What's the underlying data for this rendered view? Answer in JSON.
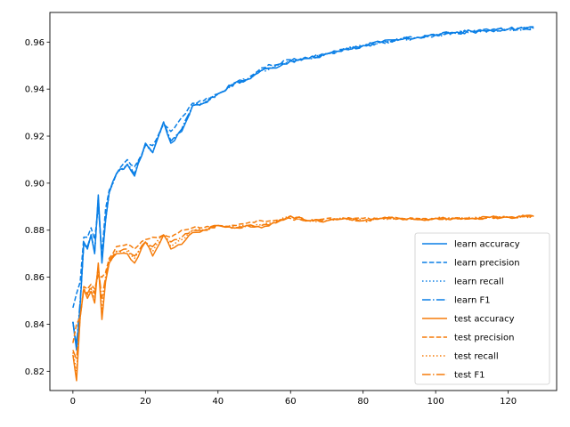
{
  "chart_data": {
    "type": "line",
    "title": "",
    "xlabel": "",
    "ylabel": "",
    "xlim": [
      -6.35,
      133.35
    ],
    "ylim": [
      0.8118,
      0.9726
    ],
    "xticks": [
      0,
      20,
      40,
      60,
      80,
      100,
      120
    ],
    "yticks": [
      0.82,
      0.84,
      0.86,
      0.88,
      0.9,
      0.92,
      0.94,
      0.96
    ],
    "legend_position": "lower-right",
    "grid": false,
    "colors": {
      "learn": "#0a7fe6",
      "test": "#f57c0a"
    },
    "keypoints": {
      "learn accuracy": [
        [
          0,
          0.841
        ],
        [
          1,
          0.829
        ],
        [
          2,
          0.848
        ],
        [
          3,
          0.875
        ],
        [
          4,
          0.872
        ],
        [
          5,
          0.878
        ],
        [
          6,
          0.87
        ],
        [
          7,
          0.895
        ],
        [
          8,
          0.866
        ],
        [
          9,
          0.884
        ],
        [
          10,
          0.896
        ],
        [
          12,
          0.904
        ],
        [
          15,
          0.908
        ],
        [
          17,
          0.903
        ],
        [
          20,
          0.917
        ],
        [
          22,
          0.913
        ],
        [
          25,
          0.926
        ],
        [
          27,
          0.917
        ],
        [
          30,
          0.922
        ],
        [
          33,
          0.933
        ],
        [
          36,
          0.934
        ],
        [
          40,
          0.938
        ],
        [
          45,
          0.943
        ],
        [
          48,
          0.944
        ],
        [
          52,
          0.948
        ],
        [
          55,
          0.949
        ],
        [
          60,
          0.952
        ],
        [
          65,
          0.953
        ],
        [
          70,
          0.955
        ],
        [
          75,
          0.957
        ],
        [
          80,
          0.9585
        ],
        [
          85,
          0.96
        ],
        [
          90,
          0.961
        ],
        [
          95,
          0.962
        ],
        [
          100,
          0.963
        ],
        [
          105,
          0.964
        ],
        [
          110,
          0.9645
        ],
        [
          115,
          0.965
        ],
        [
          120,
          0.9655
        ],
        [
          127,
          0.966
        ]
      ],
      "learn precision": [
        [
          0,
          0.847
        ],
        [
          1,
          0.853
        ],
        [
          2,
          0.858
        ],
        [
          3,
          0.877
        ],
        [
          4,
          0.877
        ],
        [
          5,
          0.881
        ],
        [
          6,
          0.876
        ],
        [
          7,
          0.89
        ],
        [
          8,
          0.87
        ],
        [
          9,
          0.889
        ],
        [
          10,
          0.897
        ],
        [
          12,
          0.904
        ],
        [
          15,
          0.91
        ],
        [
          17,
          0.907
        ],
        [
          20,
          0.916
        ],
        [
          22,
          0.916
        ],
        [
          25,
          0.925
        ],
        [
          27,
          0.922
        ],
        [
          30,
          0.928
        ],
        [
          33,
          0.934
        ],
        [
          36,
          0.935
        ],
        [
          40,
          0.938
        ],
        [
          45,
          0.943
        ],
        [
          48,
          0.944
        ],
        [
          52,
          0.949
        ],
        [
          55,
          0.95
        ],
        [
          60,
          0.9525
        ],
        [
          65,
          0.953
        ],
        [
          70,
          0.955
        ],
        [
          75,
          0.957
        ],
        [
          80,
          0.9585
        ],
        [
          85,
          0.96
        ],
        [
          90,
          0.961
        ],
        [
          95,
          0.962
        ],
        [
          100,
          0.963
        ],
        [
          105,
          0.964
        ],
        [
          110,
          0.9645
        ],
        [
          115,
          0.965
        ],
        [
          120,
          0.9655
        ],
        [
          127,
          0.9665
        ]
      ],
      "learn recall": [
        [
          0,
          0.841
        ],
        [
          1,
          0.83
        ],
        [
          2,
          0.849
        ],
        [
          3,
          0.874
        ],
        [
          4,
          0.872
        ],
        [
          5,
          0.878
        ],
        [
          6,
          0.871
        ],
        [
          7,
          0.894
        ],
        [
          8,
          0.867
        ],
        [
          9,
          0.884
        ],
        [
          10,
          0.896
        ],
        [
          12,
          0.904
        ],
        [
          15,
          0.908
        ],
        [
          17,
          0.904
        ],
        [
          20,
          0.917
        ],
        [
          22,
          0.913
        ],
        [
          25,
          0.926
        ],
        [
          27,
          0.918
        ],
        [
          30,
          0.922
        ],
        [
          33,
          0.933
        ],
        [
          36,
          0.934
        ],
        [
          40,
          0.938
        ],
        [
          45,
          0.943
        ],
        [
          48,
          0.944
        ],
        [
          52,
          0.948
        ],
        [
          55,
          0.949
        ],
        [
          60,
          0.952
        ],
        [
          65,
          0.953
        ],
        [
          70,
          0.955
        ],
        [
          75,
          0.957
        ],
        [
          80,
          0.9585
        ],
        [
          85,
          0.96
        ],
        [
          90,
          0.961
        ],
        [
          95,
          0.962
        ],
        [
          100,
          0.963
        ],
        [
          105,
          0.964
        ],
        [
          110,
          0.9645
        ],
        [
          115,
          0.965
        ],
        [
          120,
          0.9655
        ],
        [
          127,
          0.966
        ]
      ],
      "learn F1": [
        [
          0,
          0.841
        ],
        [
          1,
          0.831
        ],
        [
          2,
          0.85
        ],
        [
          3,
          0.874
        ],
        [
          4,
          0.873
        ],
        [
          5,
          0.878
        ],
        [
          6,
          0.871
        ],
        [
          7,
          0.893
        ],
        [
          8,
          0.867
        ],
        [
          9,
          0.885
        ],
        [
          10,
          0.896
        ],
        [
          12,
          0.904
        ],
        [
          15,
          0.908
        ],
        [
          17,
          0.904
        ],
        [
          20,
          0.917
        ],
        [
          22,
          0.913
        ],
        [
          25,
          0.926
        ],
        [
          27,
          0.918
        ],
        [
          30,
          0.923
        ],
        [
          33,
          0.933
        ],
        [
          36,
          0.934
        ],
        [
          40,
          0.938
        ],
        [
          45,
          0.943
        ],
        [
          48,
          0.944
        ],
        [
          52,
          0.948
        ],
        [
          55,
          0.949
        ],
        [
          60,
          0.952
        ],
        [
          65,
          0.953
        ],
        [
          70,
          0.955
        ],
        [
          75,
          0.957
        ],
        [
          80,
          0.9585
        ],
        [
          85,
          0.96
        ],
        [
          90,
          0.961
        ],
        [
          95,
          0.962
        ],
        [
          100,
          0.963
        ],
        [
          105,
          0.964
        ],
        [
          110,
          0.9645
        ],
        [
          115,
          0.965
        ],
        [
          120,
          0.9655
        ],
        [
          127,
          0.966
        ]
      ],
      "test accuracy": [
        [
          0,
          0.827
        ],
        [
          1,
          0.816
        ],
        [
          2,
          0.843
        ],
        [
          3,
          0.855
        ],
        [
          4,
          0.851
        ],
        [
          5,
          0.854
        ],
        [
          6,
          0.849
        ],
        [
          7,
          0.866
        ],
        [
          8,
          0.842
        ],
        [
          9,
          0.858
        ],
        [
          10,
          0.866
        ],
        [
          12,
          0.87
        ],
        [
          15,
          0.87
        ],
        [
          17,
          0.866
        ],
        [
          20,
          0.875
        ],
        [
          22,
          0.869
        ],
        [
          25,
          0.878
        ],
        [
          27,
          0.872
        ],
        [
          30,
          0.874
        ],
        [
          33,
          0.879
        ],
        [
          36,
          0.88
        ],
        [
          40,
          0.882
        ],
        [
          45,
          0.881
        ],
        [
          48,
          0.882
        ],
        [
          52,
          0.881
        ],
        [
          55,
          0.883
        ],
        [
          60,
          0.886
        ],
        [
          65,
          0.884
        ],
        [
          70,
          0.884
        ],
        [
          75,
          0.885
        ],
        [
          80,
          0.884
        ],
        [
          85,
          0.885
        ],
        [
          90,
          0.885
        ],
        [
          95,
          0.8845
        ],
        [
          100,
          0.885
        ],
        [
          105,
          0.885
        ],
        [
          110,
          0.885
        ],
        [
          115,
          0.8855
        ],
        [
          120,
          0.8855
        ],
        [
          127,
          0.886
        ]
      ],
      "test precision": [
        [
          0,
          0.832
        ],
        [
          1,
          0.84
        ],
        [
          2,
          0.843
        ],
        [
          3,
          0.856
        ],
        [
          4,
          0.855
        ],
        [
          5,
          0.857
        ],
        [
          6,
          0.855
        ],
        [
          7,
          0.861
        ],
        [
          8,
          0.86
        ],
        [
          9,
          0.862
        ],
        [
          10,
          0.868
        ],
        [
          12,
          0.873
        ],
        [
          15,
          0.874
        ],
        [
          17,
          0.872
        ],
        [
          20,
          0.876
        ],
        [
          22,
          0.877
        ],
        [
          25,
          0.878
        ],
        [
          27,
          0.877
        ],
        [
          30,
          0.88
        ],
        [
          33,
          0.881
        ],
        [
          36,
          0.881
        ],
        [
          40,
          0.882
        ],
        [
          45,
          0.882
        ],
        [
          48,
          0.883
        ],
        [
          52,
          0.884
        ],
        [
          55,
          0.884
        ],
        [
          60,
          0.885
        ],
        [
          65,
          0.884
        ],
        [
          70,
          0.885
        ],
        [
          75,
          0.885
        ],
        [
          80,
          0.885
        ],
        [
          85,
          0.885
        ],
        [
          90,
          0.885
        ],
        [
          95,
          0.885
        ],
        [
          100,
          0.885
        ],
        [
          105,
          0.885
        ],
        [
          110,
          0.885
        ],
        [
          115,
          0.8855
        ],
        [
          120,
          0.8855
        ],
        [
          127,
          0.886
        ]
      ],
      "test recall": [
        [
          0,
          0.828
        ],
        [
          1,
          0.82
        ],
        [
          2,
          0.843
        ],
        [
          3,
          0.855
        ],
        [
          4,
          0.852
        ],
        [
          5,
          0.855
        ],
        [
          6,
          0.851
        ],
        [
          7,
          0.865
        ],
        [
          8,
          0.846
        ],
        [
          9,
          0.859
        ],
        [
          10,
          0.866
        ],
        [
          12,
          0.871
        ],
        [
          15,
          0.871
        ],
        [
          17,
          0.868
        ],
        [
          20,
          0.875
        ],
        [
          22,
          0.871
        ],
        [
          25,
          0.878
        ],
        [
          27,
          0.873
        ],
        [
          30,
          0.876
        ],
        [
          33,
          0.88
        ],
        [
          36,
          0.88
        ],
        [
          40,
          0.882
        ],
        [
          45,
          0.881
        ],
        [
          48,
          0.882
        ],
        [
          52,
          0.882
        ],
        [
          55,
          0.883
        ],
        [
          60,
          0.886
        ],
        [
          65,
          0.884
        ],
        [
          70,
          0.884
        ],
        [
          75,
          0.885
        ],
        [
          80,
          0.884
        ],
        [
          85,
          0.885
        ],
        [
          90,
          0.885
        ],
        [
          95,
          0.8845
        ],
        [
          100,
          0.885
        ],
        [
          105,
          0.885
        ],
        [
          110,
          0.885
        ],
        [
          115,
          0.8855
        ],
        [
          120,
          0.8855
        ],
        [
          127,
          0.886
        ]
      ],
      "test F1": [
        [
          0,
          0.829
        ],
        [
          1,
          0.825
        ],
        [
          2,
          0.843
        ],
        [
          3,
          0.855
        ],
        [
          4,
          0.853
        ],
        [
          5,
          0.856
        ],
        [
          6,
          0.853
        ],
        [
          7,
          0.864
        ],
        [
          8,
          0.851
        ],
        [
          9,
          0.86
        ],
        [
          10,
          0.867
        ],
        [
          12,
          0.871
        ],
        [
          15,
          0.872
        ],
        [
          17,
          0.869
        ],
        [
          20,
          0.875
        ],
        [
          22,
          0.873
        ],
        [
          25,
          0.878
        ],
        [
          27,
          0.875
        ],
        [
          30,
          0.877
        ],
        [
          33,
          0.88
        ],
        [
          36,
          0.88
        ],
        [
          40,
          0.882
        ],
        [
          45,
          0.881
        ],
        [
          48,
          0.882
        ],
        [
          52,
          0.882
        ],
        [
          55,
          0.883
        ],
        [
          60,
          0.886
        ],
        [
          65,
          0.884
        ],
        [
          70,
          0.884
        ],
        [
          75,
          0.885
        ],
        [
          80,
          0.884
        ],
        [
          85,
          0.885
        ],
        [
          90,
          0.885
        ],
        [
          95,
          0.8845
        ],
        [
          100,
          0.885
        ],
        [
          105,
          0.885
        ],
        [
          110,
          0.885
        ],
        [
          115,
          0.8855
        ],
        [
          120,
          0.8855
        ],
        [
          127,
          0.886
        ]
      ]
    },
    "series": [
      {
        "name": "learn accuracy",
        "group": "learn",
        "style": "solid"
      },
      {
        "name": "learn precision",
        "group": "learn",
        "style": "dashed"
      },
      {
        "name": "learn recall",
        "group": "learn",
        "style": "dotted"
      },
      {
        "name": "learn F1",
        "group": "learn",
        "style": "dashdot"
      },
      {
        "name": "test accuracy",
        "group": "test",
        "style": "solid"
      },
      {
        "name": "test precision",
        "group": "test",
        "style": "dashed"
      },
      {
        "name": "test recall",
        "group": "test",
        "style": "dotted"
      },
      {
        "name": "test F1",
        "group": "test",
        "style": "dashdot"
      }
    ]
  }
}
